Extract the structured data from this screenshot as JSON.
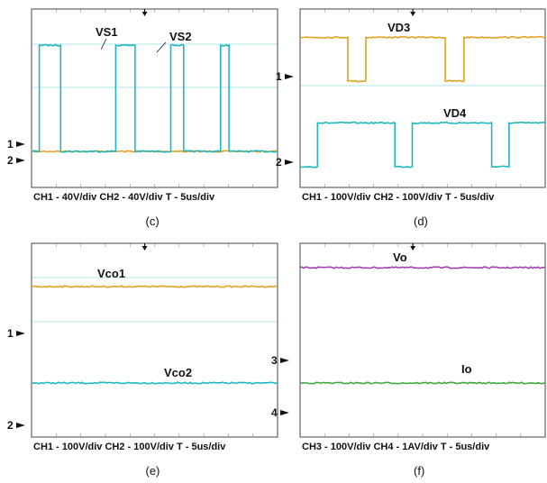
{
  "chart_data": [
    {
      "type": "line",
      "panel_label": "(c)",
      "caption": "CH1 - 40V/div  CH2 - 40V/div  T - 5us/div",
      "channel_markers": [
        "1",
        "2"
      ],
      "x_unit": "us",
      "x_per_div": 5,
      "series": [
        {
          "name": "VS1",
          "color": "#e8a020",
          "x": [
            0,
            5,
            5,
            7,
            7,
            9,
            9,
            12,
            12,
            14.2,
            14.2,
            20,
            20,
            22.3,
            22.3,
            29.6,
            29.6,
            31.4,
            31.4,
            38
          ],
          "y": [
            0,
            0,
            0,
            0,
            0,
            0,
            0,
            0,
            0,
            0,
            0,
            0,
            0,
            0,
            0,
            0,
            0,
            0,
            0,
            0
          ]
        },
        {
          "name": "VS2",
          "color": "#20b8c0",
          "x": [
            0,
            1.2,
            1.2,
            4.5,
            4.5,
            13,
            13,
            16,
            16,
            21.5,
            21.5,
            23.5,
            23.5,
            29.2,
            29.2,
            30.5,
            30.5,
            38
          ],
          "y": [
            0,
            0,
            95,
            95,
            0,
            0,
            95,
            95,
            0,
            0,
            95,
            95,
            0,
            0,
            95,
            95,
            0,
            0
          ]
        }
      ]
    },
    {
      "type": "line",
      "panel_label": "(d)",
      "caption": "CH1 - 100V/div  CH2 - 100V/div  T - 5us/div",
      "channel_markers": [
        "1",
        "2"
      ],
      "x_unit": "us",
      "x_per_div": 5,
      "series": [
        {
          "name": "VD3",
          "color": "#e8a020",
          "x": [
            0,
            7.4,
            7.4,
            10.2,
            10.2,
            22.5,
            22.5,
            25.4,
            25.4,
            38
          ],
          "y": [
            120,
            120,
            0,
            0,
            120,
            120,
            0,
            0,
            120,
            120
          ]
        },
        {
          "name": "VD4",
          "color": "#20b8c0",
          "x": [
            0,
            2.7,
            2.7,
            14.7,
            14.7,
            17.4,
            17.4,
            29.7,
            29.7,
            32.4,
            32.4,
            38
          ],
          "y": [
            0,
            0,
            120,
            120,
            0,
            0,
            120,
            120,
            0,
            0,
            120,
            120
          ]
        }
      ]
    },
    {
      "type": "line",
      "panel_label": "(e)",
      "caption": "CH1 - 100V/div  CH2 - 100V/div  T - 5us/div",
      "channel_markers": [
        "1",
        "2"
      ],
      "x_unit": "us",
      "x_per_div": 5,
      "series": [
        {
          "name": "Vco1",
          "color": "#e8a020",
          "x": [
            0,
            38
          ],
          "y": [
            120,
            120
          ]
        },
        {
          "name": "Vco2",
          "color": "#20b8c0",
          "x": [
            0,
            38
          ],
          "y": [
            110,
            110
          ]
        }
      ]
    },
    {
      "type": "line",
      "panel_label": "(f)",
      "caption": "CH3 - 100V/div  CH4 - 1AV/div  T - 5us/div",
      "channel_markers": [
        "3",
        "4"
      ],
      "x_unit": "us",
      "x_per_div": 5,
      "series": [
        {
          "name": "Vo",
          "color": "#a040b0",
          "x": [
            0,
            38
          ],
          "y": [
            250,
            250
          ]
        },
        {
          "name": "Io",
          "color": "#40a840",
          "x": [
            0,
            38
          ],
          "y": [
            1.0,
            1.0
          ]
        }
      ]
    }
  ]
}
